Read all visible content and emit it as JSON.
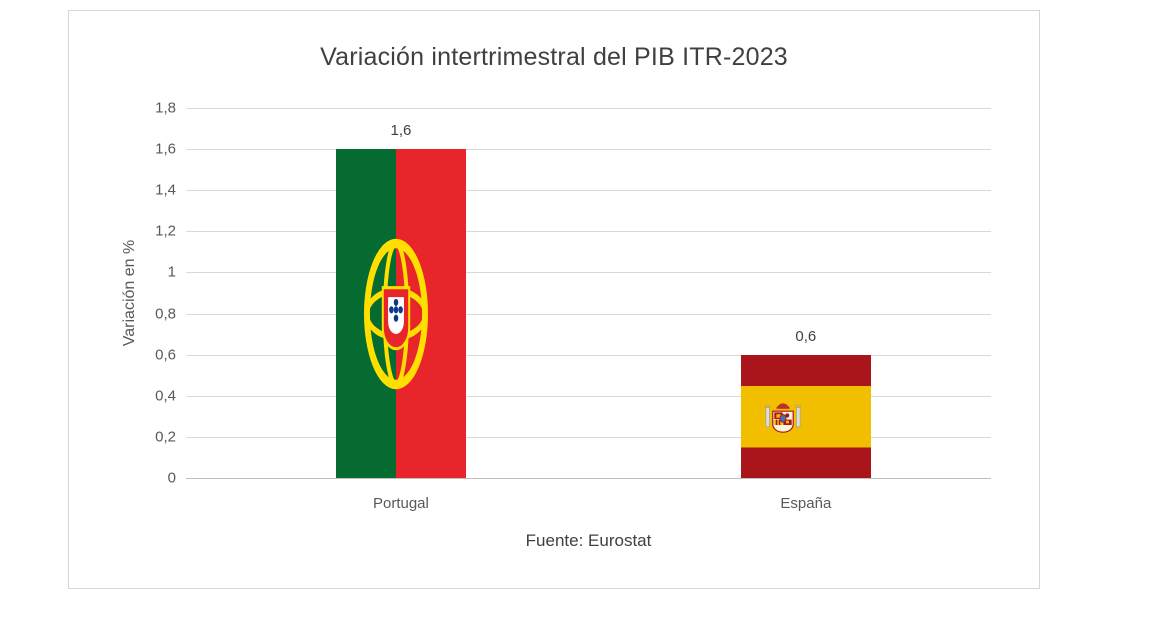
{
  "chart_data": {
    "type": "bar",
    "title": "Variación intertrimestral del PIB ITR-2023",
    "categories": [
      "Portugal",
      "España"
    ],
    "values": [
      1.6,
      0.6
    ],
    "value_labels": [
      "1,6",
      "0,6"
    ],
    "ylabel": "Variación en %",
    "xlabel": "",
    "ylim": [
      0,
      1.8
    ],
    "ytick_step": 0.2,
    "ytick_labels": [
      "0",
      "0,2",
      "0,4",
      "0,6",
      "0,8",
      "1",
      "1,2",
      "1,4",
      "1,6",
      "1,8"
    ],
    "grid": "horizontal",
    "legend": "none",
    "caption": "Fuente: Eurostat",
    "bar_styles": [
      "portugal-flag",
      "spain-flag"
    ]
  },
  "colors": {
    "text": "#404040",
    "axis_text": "#595959",
    "grid": "#d9d9d9",
    "axis_line": "#bfbfbf",
    "border": "#d6d6d6",
    "portugal_green": "#066b30",
    "portugal_red": "#e8252a",
    "spain_red": "#aa151b",
    "spain_yellow": "#f1bf00"
  }
}
